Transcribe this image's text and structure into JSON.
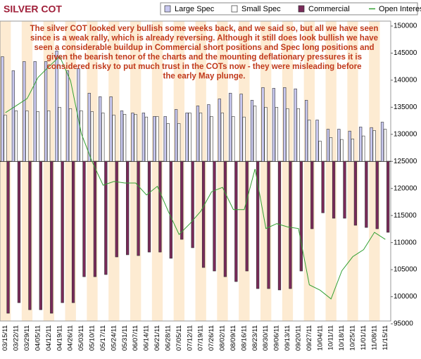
{
  "chart_data": {
    "type": "bar",
    "title": "SILVER COT",
    "annotation": [
      "The silver COT looked very bullish some weeks back, and we said so, but all we have seen",
      "since is a weak rally, which is already reversing. Although it still does look bullish we have",
      "seen a considerable buildup in Commercial short positions and Spec long positions and",
      "given the bearish tenor of the charts and the mounting deflationary pressures it is",
      "considered risky to put much trust in the COTs now - they were misleading before",
      "the early May plunge."
    ],
    "categories": [
      "03/15/11",
      "03/22/11",
      "03/29/11",
      "04/05/11",
      "04/12/11",
      "04/19/11",
      "04/26/11",
      "05/03/11",
      "05/10/11",
      "05/17/11",
      "05/24/11",
      "05/31/11",
      "06/07/11",
      "06/14/11",
      "06/21/11",
      "06/28/11",
      "07/05/11",
      "07/12/11",
      "07/19/11",
      "07/26/11",
      "08/02/11",
      "08/09/11",
      "08/16/11",
      "08/23/11",
      "08/30/11",
      "09/06/11",
      "09/13/11",
      "09/20/11",
      "09/27/11",
      "10/04/11",
      "10/11/11",
      "10/18/11",
      "10/25/11",
      "11/01/11",
      "11/08/11",
      "11/15/11"
    ],
    "ylim": [
      -60000,
      50000
    ],
    "y2lim": [
      95000,
      150000
    ],
    "y2ticks": [
      150000,
      145000,
      140000,
      135000,
      130000,
      125000,
      120000,
      115000,
      110000,
      105000,
      100000,
      95000
    ],
    "legend": "top-right",
    "series": [
      {
        "name": "Large Spec",
        "color": "#c8c8f0",
        "values": [
          38700,
          33500,
          36900,
          36900,
          36900,
          40800,
          33500,
          34300,
          25200,
          23900,
          23900,
          18700,
          17900,
          17900,
          16600,
          16600,
          19200,
          17900,
          20500,
          21000,
          23100,
          25200,
          24900,
          22600,
          27300,
          27000,
          27300,
          26800,
          22600,
          15300,
          11900,
          11900,
          11200,
          12700,
          12500,
          14500
        ]
      },
      {
        "name": "Small Spec",
        "color": "#ffffff",
        "values": [
          17100,
          18700,
          18700,
          18400,
          18700,
          20000,
          19500,
          18700,
          18400,
          17900,
          17100,
          17400,
          17400,
          16400,
          16600,
          14000,
          14000,
          17900,
          17900,
          16600,
          17900,
          16600,
          16400,
          20500,
          20000,
          20000,
          19500,
          19500,
          15300,
          7500,
          8800,
          8100,
          8300,
          9400,
          11400,
          11900
        ]
      },
      {
        "name": "Commercial",
        "color": "#7a2a5a",
        "values": [
          -56100,
          -52200,
          -54800,
          -54800,
          -56100,
          -52200,
          -52200,
          -42600,
          -42600,
          -41800,
          -35300,
          -34500,
          -34800,
          -33500,
          -33500,
          -35800,
          -28800,
          -31900,
          -39200,
          -40500,
          -42600,
          -44400,
          -40500,
          -47000,
          -47000,
          -47500,
          -47000,
          -40500,
          -24900,
          -19000,
          -21000,
          -21000,
          -23600,
          -24400,
          -24900,
          -26200
        ]
      },
      {
        "name": "Open Interest",
        "color": "#33a033",
        "axis": "y2",
        "values": [
          134000,
          135300,
          136600,
          140500,
          142500,
          144400,
          139900,
          130100,
          124900,
          120600,
          121300,
          121000,
          121000,
          118800,
          120400,
          115800,
          111500,
          113500,
          115800,
          119400,
          120200,
          116100,
          116100,
          123600,
          112600,
          113500,
          112900,
          112600,
          102200,
          101200,
          99600,
          104800,
          107400,
          108700,
          111900,
          110600
        ]
      }
    ]
  }
}
